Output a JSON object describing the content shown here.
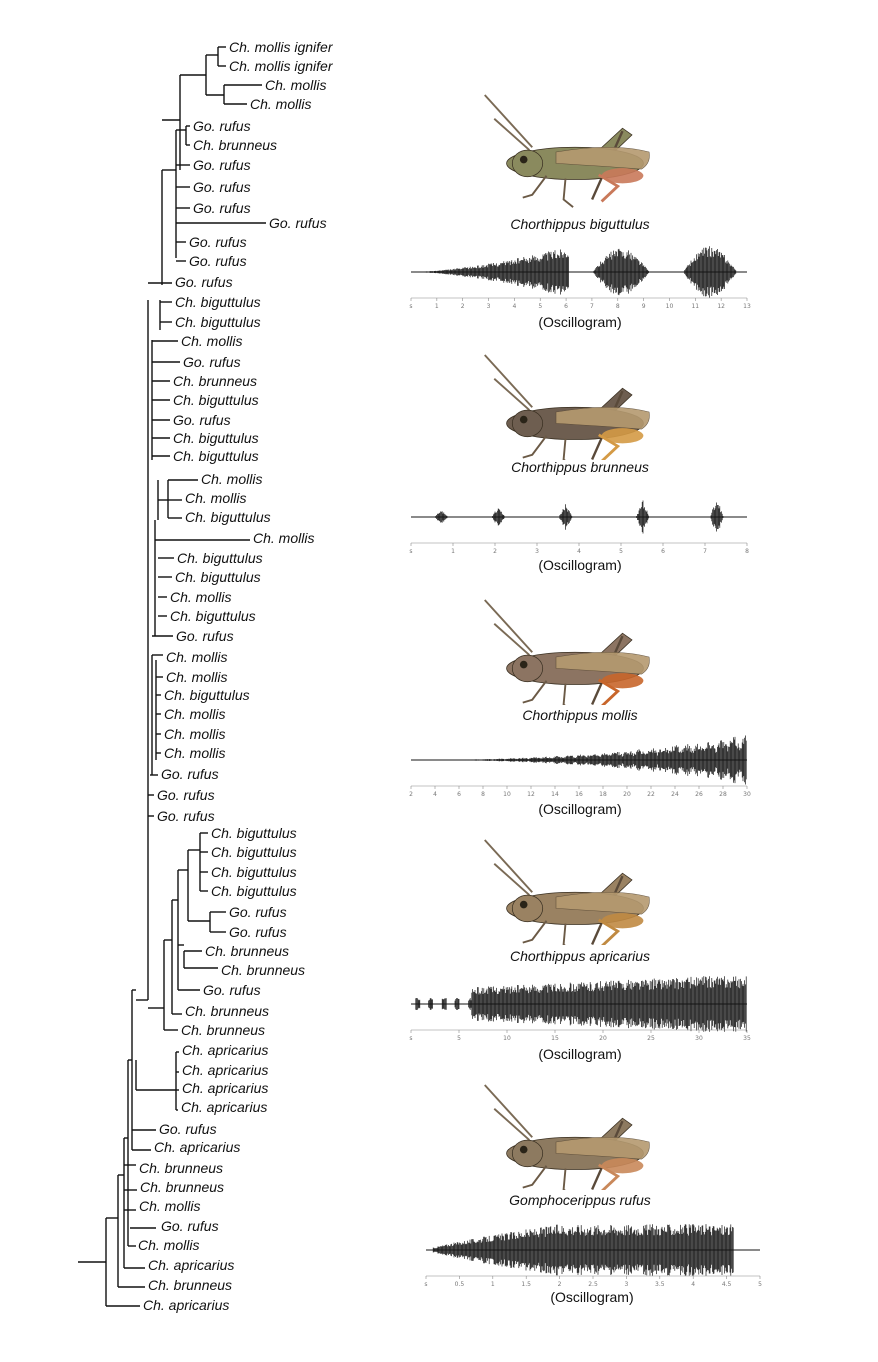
{
  "tree": {
    "leaves": [
      "Ch. mollis ignifer",
      "Ch. mollis ignifer",
      "Ch. mollis",
      "Ch. mollis",
      "Go. rufus",
      "Ch. brunneus",
      "Go. rufus",
      "Go. rufus",
      "Go. rufus",
      "Go. rufus",
      "Go. rufus",
      "Go. rufus",
      "Go. rufus",
      "Ch. biguttulus",
      "Ch. biguttulus",
      "Ch. mollis",
      "Go. rufus",
      "Ch. brunneus",
      "Ch. biguttulus",
      "Go. rufus",
      "Ch. biguttulus",
      "Ch. biguttulus",
      "Ch. mollis",
      "Ch. mollis",
      "Ch. biguttulus",
      "Ch. mollis",
      "Ch. biguttulus",
      "Ch. biguttulus",
      "Ch. mollis",
      "Ch. biguttulus",
      "Go. rufus",
      "Ch. mollis",
      "Ch. mollis",
      "Ch. biguttulus",
      "Ch. mollis",
      "Ch. mollis",
      "Ch. mollis",
      "Go. rufus",
      "Go. rufus",
      "Go. rufus",
      "Ch. biguttulus",
      "Ch. biguttulus",
      "Ch. biguttulus",
      "Ch. biguttulus",
      "Go. rufus",
      "Go. rufus",
      "Ch. brunneus",
      "Ch. brunneus",
      "Go. rufus",
      "Ch. brunneus",
      "Ch. brunneus",
      "Ch. apricarius",
      "Ch. apricarius",
      "Ch. apricarius",
      "Ch. apricarius",
      "Go. rufus",
      "Ch. apricarius",
      "Ch. brunneus",
      "Ch. brunneus",
      "Ch. mollis",
      "Go. rufus",
      "Ch. mollis",
      "Ch. apricarius",
      "Ch. brunneus",
      "Ch. apricarius"
    ]
  },
  "panels": [
    {
      "species": "Chorthippus biguttulus",
      "osc_label": "(Oscillogram)",
      "ticks": [
        "s",
        "1",
        "2",
        "3",
        "4",
        "5",
        "6",
        "7",
        "8",
        "9",
        "10",
        "11",
        "12",
        "13"
      ],
      "body_color": "#8a8a5e",
      "leg_color": "#c9795a"
    },
    {
      "species": "Chorthippus brunneus",
      "osc_label": "(Oscillogram)",
      "ticks": [
        "s",
        "1",
        "2",
        "3",
        "4",
        "5",
        "6",
        "7",
        "8"
      ],
      "body_color": "#6e5e50",
      "leg_color": "#d49a45"
    },
    {
      "species": "Chorthippus mollis",
      "osc_label": "(Oscillogram)",
      "ticks": [
        "2",
        "4",
        "6",
        "8",
        "10",
        "12",
        "14",
        "16",
        "18",
        "20",
        "22",
        "24",
        "26",
        "28",
        "30"
      ],
      "body_color": "#8c7462",
      "leg_color": "#c8662b"
    },
    {
      "species": "Chorthippus apricarius",
      "osc_label": "(Oscillogram)",
      "ticks": [
        "s",
        "5",
        "10",
        "15",
        "20",
        "25",
        "30",
        "35"
      ],
      "body_color": "#9a8262",
      "leg_color": "#c08a42"
    },
    {
      "species": "Gomphocerippus rufus",
      "osc_label": "(Oscillogram)",
      "ticks": [
        "s",
        "0.5",
        "1",
        "1.5",
        "2",
        "2.5",
        "3",
        "3.5",
        "4",
        "4.5",
        "5"
      ],
      "body_color": "#8d7a60",
      "leg_color": "#c9885a"
    }
  ],
  "colors": {
    "ink": "#111111",
    "waveform": "#151515",
    "axis": "#888888"
  }
}
